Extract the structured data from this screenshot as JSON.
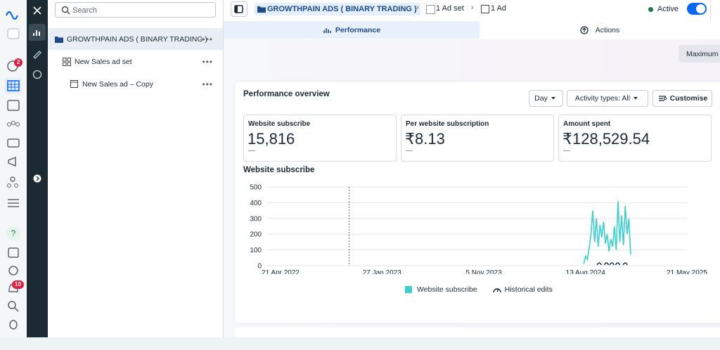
{
  "nav": {
    "badges": [
      2,
      10
    ]
  },
  "panel": {
    "search_placeholder": "Search",
    "tree": [
      {
        "label": "GROWTHPAIN ADS ( BINARY TRADING )"
      },
      {
        "label": "New Sales ad set"
      },
      {
        "label": "New Sales ad – Copy"
      }
    ]
  },
  "header": {
    "breadcrumb": [
      "GROWTHPAIN ADS ( BINARY TRADING )",
      "1 Ad set",
      "1 Ad"
    ],
    "status": "Active"
  },
  "tabs": [
    "Performance",
    "Actions"
  ],
  "toolbar": {
    "button": "Maximum"
  },
  "overview": {
    "title": "Performance overview",
    "controls": [
      "Day",
      "Activity types: All",
      "Customise"
    ],
    "metrics": [
      {
        "label": "Website subscribe",
        "value": "15,816",
        "change": "—"
      },
      {
        "label": "Per website subscription",
        "value": "₹8.13",
        "change": "—"
      },
      {
        "label": "Amount spent",
        "value": "₹128,529.54",
        "change": "—"
      }
    ]
  },
  "chart_data": {
    "type": "line",
    "title": "Website subscribe",
    "x": [
      "8 Aug 2024",
      "13 Aug 2024",
      "18 Aug 2024",
      "23 Aug 2024",
      "28 Aug 2024",
      "2 Sep 2024",
      "7 Sep 2024",
      "12 Sep 2024",
      "17 Sep 2024",
      "22 Sep 2024",
      "27 Sep 2024",
      "2 Oct 2024",
      "7 Oct 2024",
      "12 Oct 2024",
      "17 Oct 2024",
      "22 Oct 2024",
      "27 Oct 2024",
      "1 Nov 2024",
      "6 Nov 2024",
      "11 Nov 2024",
      "16 Nov 2024",
      "21 Nov 2024",
      "26 Nov 2024",
      "1 Dec 2024",
      "6 Dec 2024",
      "11 Dec 2024",
      "16 Dec 2024"
    ],
    "series": [
      {
        "name": "Website subscribe",
        "color": "#3ccfcf",
        "values": [
          10,
          60,
          40,
          110,
          200,
          350,
          150,
          300,
          120,
          260,
          180,
          280,
          140,
          200,
          90,
          170,
          120,
          250,
          100,
          410,
          150,
          320,
          130,
          380,
          200,
          300,
          70
        ]
      }
    ],
    "historical_edits": {
      "name": "Historical edits",
      "dates": [
        "28 Oct 2022",
        "20 Sep 2024",
        "10 Oct 2024",
        "25 Oct 2024",
        "10 Nov 2024",
        "1 Dec 2024"
      ]
    },
    "xlim": [
      "13 Mar 2022",
      "21 May 2025"
    ],
    "xticks": [
      "21 Apr 2022",
      "27 Jan 2023",
      "5 Nov 2023",
      "13 Aug 2024",
      "21 May 2025"
    ],
    "ylim": [
      0,
      500
    ],
    "yticks": [
      0,
      100,
      200,
      300,
      400,
      500
    ],
    "grid": true
  }
}
